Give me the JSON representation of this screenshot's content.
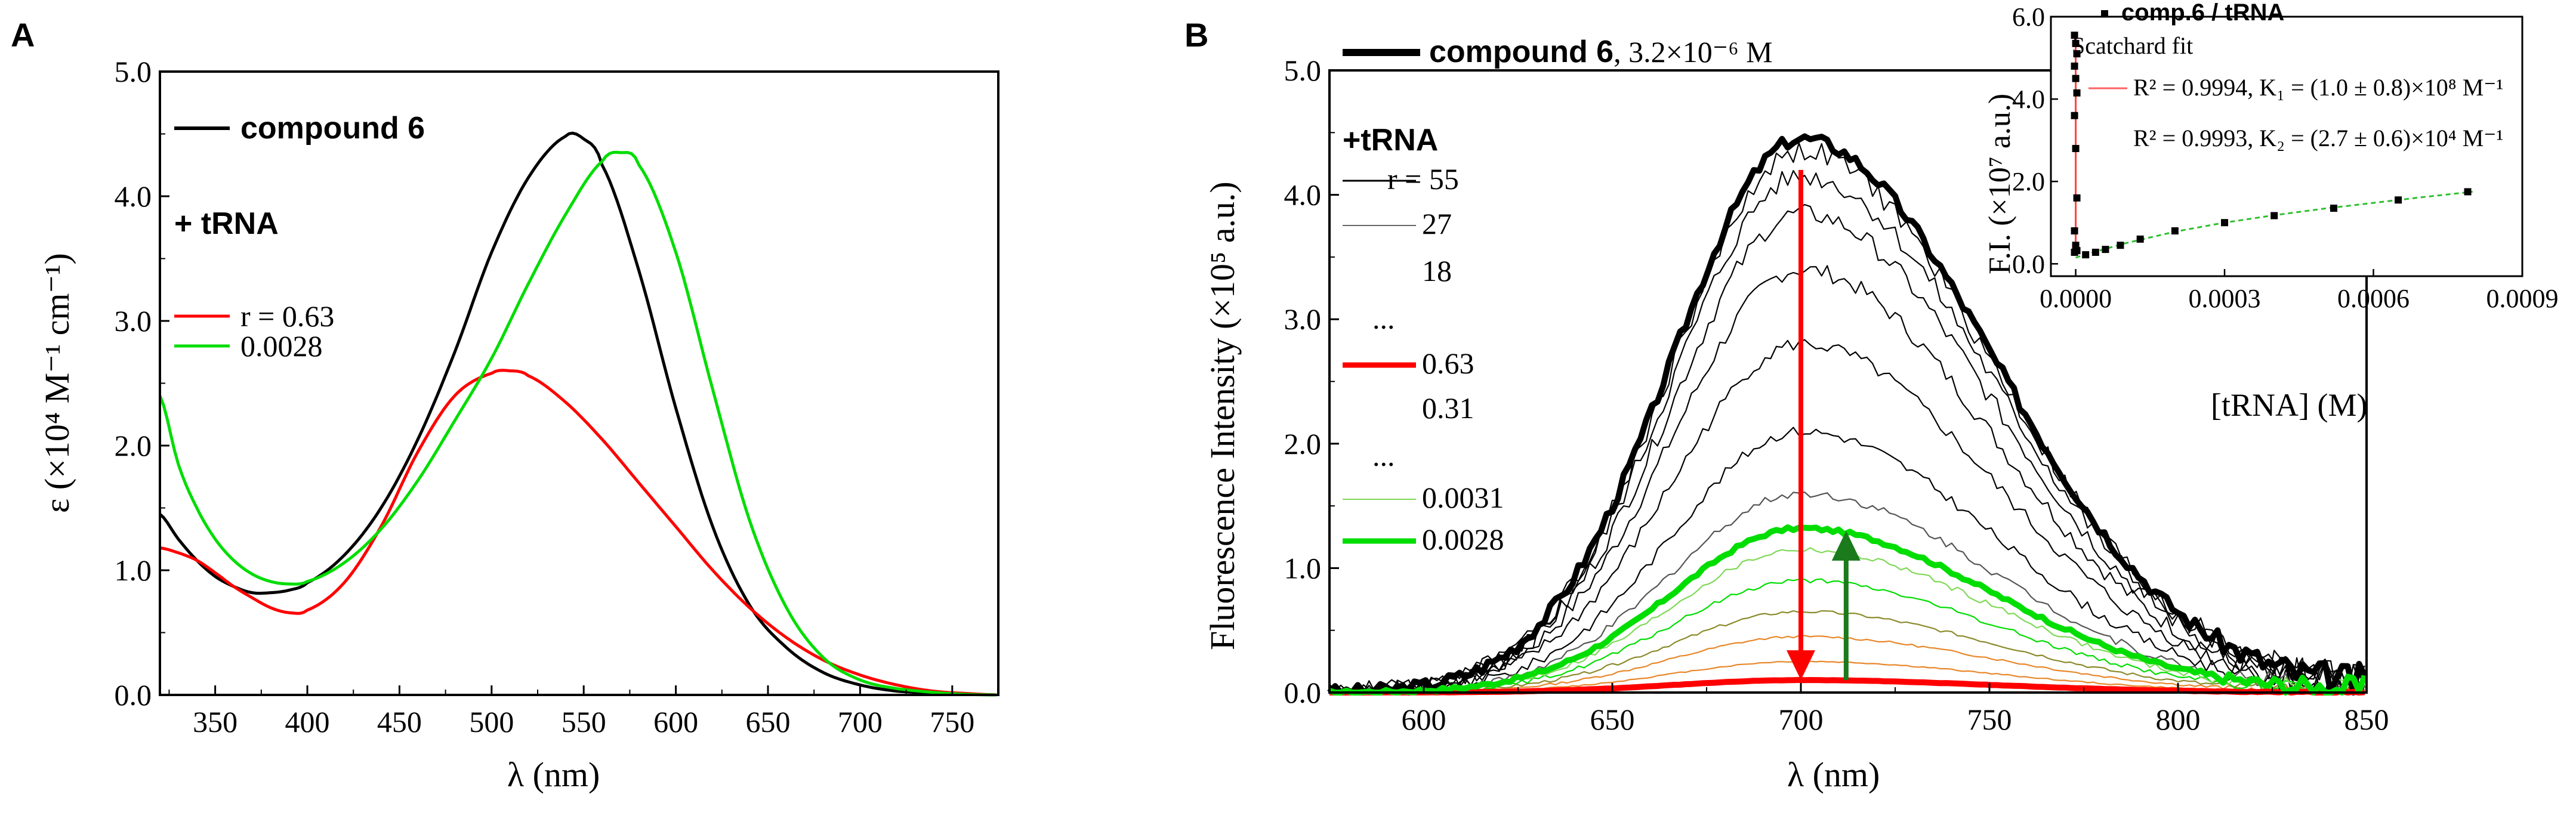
{
  "panel_a_label": "A",
  "panel_b_label": "B",
  "colors": {
    "black": "#000000",
    "red": "#ff0000",
    "green": "#00dd00",
    "darkgreen": "#1b7a1b",
    "pink": "#ff8080",
    "lightgreen": "#7ed957"
  },
  "chart_data": [
    {
      "type": "line",
      "title": "",
      "xlabel": "λ (nm)",
      "ylabel": "ε (×10⁴ M⁻¹ cm⁻¹)",
      "xlim": [
        320,
        775
      ],
      "ylim": [
        0,
        5.0
      ],
      "xticks": [
        350,
        400,
        450,
        500,
        550,
        600,
        650,
        700,
        750
      ],
      "yticks": [
        0.0,
        1.0,
        2.0,
        3.0,
        4.0,
        5.0
      ],
      "ytick_labels": [
        "0.0",
        "1.0",
        "2.0",
        "3.0",
        "4.0",
        "5.0"
      ],
      "legend": {
        "title_compound": "compound 6",
        "title_trna": "+ tRNA",
        "r_red": "r = 0.63",
        "r_green": "0.0028"
      },
      "series": [
        {
          "name": "compound 6",
          "color": "black",
          "x": [
            320,
            330,
            340,
            350,
            360,
            370,
            380,
            390,
            400,
            420,
            440,
            460,
            480,
            500,
            520,
            540,
            550,
            560,
            580,
            600,
            620,
            640,
            660,
            680,
            700,
            720,
            750,
            775
          ],
          "y": [
            1.45,
            1.25,
            1.08,
            0.95,
            0.87,
            0.82,
            0.82,
            0.84,
            0.9,
            1.12,
            1.5,
            2.05,
            2.75,
            3.55,
            4.15,
            4.48,
            4.46,
            4.25,
            3.4,
            2.3,
            1.35,
            0.72,
            0.38,
            0.18,
            0.08,
            0.03,
            0.01,
            0.0
          ]
        },
        {
          "name": "r = 0.63",
          "color": "red",
          "x": [
            320,
            330,
            340,
            350,
            360,
            370,
            380,
            390,
            400,
            420,
            440,
            460,
            480,
            500,
            510,
            520,
            540,
            560,
            580,
            600,
            620,
            640,
            660,
            680,
            700,
            720,
            740,
            760,
            775
          ],
          "y": [
            1.18,
            1.14,
            1.08,
            0.98,
            0.87,
            0.78,
            0.7,
            0.66,
            0.68,
            0.9,
            1.35,
            1.95,
            2.4,
            2.58,
            2.6,
            2.56,
            2.35,
            2.05,
            1.7,
            1.35,
            1.0,
            0.7,
            0.46,
            0.28,
            0.16,
            0.08,
            0.03,
            0.01,
            0.0
          ]
        },
        {
          "name": "0.0028",
          "color": "green",
          "x": [
            320,
            330,
            340,
            350,
            360,
            370,
            380,
            390,
            400,
            420,
            440,
            460,
            480,
            500,
            520,
            540,
            560,
            570,
            580,
            600,
            620,
            640,
            660,
            680,
            700,
            720,
            750,
            775
          ],
          "y": [
            2.4,
            1.85,
            1.5,
            1.25,
            1.08,
            0.97,
            0.91,
            0.89,
            0.91,
            1.06,
            1.33,
            1.72,
            2.2,
            2.7,
            3.3,
            3.85,
            4.28,
            4.35,
            4.25,
            3.55,
            2.45,
            1.4,
            0.7,
            0.3,
            0.12,
            0.05,
            0.01,
            0.0
          ]
        }
      ]
    },
    {
      "type": "line",
      "title": "",
      "xlabel": "λ (nm)",
      "ylabel": "Fluorescence Intensity (×10⁵ a.u.)",
      "xlim": [
        575,
        850
      ],
      "ylim": [
        0,
        5.0
      ],
      "xticks": [
        600,
        650,
        700,
        750,
        800,
        850
      ],
      "yticks": [
        0.0,
        1.0,
        2.0,
        3.0,
        4.0,
        5.0
      ],
      "ytick_labels": [
        "0.0",
        "1.0",
        "2.0",
        "3.0",
        "4.0",
        "5.0"
      ],
      "legend": {
        "compound_label": "compound 6",
        "compound_conc": ", 3.2×10⁻⁶ M",
        "trna": "+tRNA",
        "r_entries": [
          "r = 55",
          "27",
          "18",
          "...",
          "0.63",
          "0.31",
          "...",
          "0.0031",
          "0.0028"
        ]
      },
      "peak_wavelength": 700,
      "curves": [
        {
          "name": "compound 6",
          "color": "black",
          "peak": 4.45,
          "style": "thick"
        },
        {
          "name": "r = 55",
          "color": "black",
          "peak": 4.35
        },
        {
          "name": "27",
          "color": "black",
          "peak": 4.15
        },
        {
          "name": "18",
          "color": "black",
          "peak": 3.85
        },
        {
          "name": "tRNA",
          "color": "black",
          "peak": 3.4
        },
        {
          "name": "tRNA",
          "color": "black",
          "peak": 2.8
        },
        {
          "name": "tRNA",
          "color": "black",
          "peak": 2.1
        },
        {
          "name": "tRNA",
          "color": "gray",
          "peak": 1.6
        },
        {
          "name": "0.63",
          "color": "red",
          "peak": 0.1,
          "style": "thick"
        },
        {
          "name": "0.31",
          "color": "orange",
          "peak": 0.25
        },
        {
          "name": "tRNA",
          "color": "orange",
          "peak": 0.45
        },
        {
          "name": "tRNA",
          "color": "olive",
          "peak": 0.65
        },
        {
          "name": "tRNA",
          "color": "green",
          "peak": 0.9
        },
        {
          "name": "0.0031",
          "color": "lightgreen",
          "peak": 1.15
        },
        {
          "name": "0.0028",
          "color": "green",
          "peak": 1.32,
          "style": "thick"
        }
      ],
      "arrows": [
        {
          "color": "red",
          "x": 700,
          "from": 4.2,
          "to": 0.1
        },
        {
          "color": "darkgreen",
          "x": 712,
          "from": 0.1,
          "to": 1.3
        }
      ]
    },
    {
      "type": "scatter",
      "title": "",
      "xlabel": "[tRNA] (M)",
      "ylabel": "F.I. (×10⁷ a.u.)",
      "xlim": [
        -5e-05,
        0.0009
      ],
      "ylim": [
        -0.3,
        6.0
      ],
      "xticks": [
        0.0,
        0.0003,
        0.0006,
        0.0009
      ],
      "xtick_labels": [
        "0.0000",
        "0.0003",
        "0.0006",
        "0.0009"
      ],
      "yticks": [
        0.0,
        2.0,
        4.0,
        6.0
      ],
      "ytick_labels": [
        "0.0",
        "2.0",
        "4.0",
        "6.0"
      ],
      "legend": {
        "points": "comp.6 / tRNA",
        "fit": "Scatchard fit",
        "fit1": "R² = 0.9994, K₁ = (1.0 ± 0.8)×10⁸ M⁻¹",
        "fit2": "R² = 0.9993, K₂ = (2.7 ± 0.6)×10⁴ M⁻¹"
      },
      "points_near_zero": {
        "x": [
          1e-07,
          2e-07,
          3e-07,
          4e-07,
          5e-07,
          6e-07,
          8e-07,
          1e-06,
          1.2e-06,
          1.5e-06,
          2e-06,
          3e-06,
          5e-06
        ],
        "y": [
          5.55,
          5.35,
          5.1,
          4.8,
          4.5,
          4.15,
          3.6,
          2.8,
          1.6,
          0.8,
          0.45,
          0.32,
          0.28
        ]
      },
      "points": {
        "x": [
          2e-05,
          4e-05,
          6e-05,
          9e-05,
          0.00013,
          0.0002,
          0.0003,
          0.0004,
          0.00052,
          0.00065,
          0.00079
        ],
        "y": [
          0.22,
          0.28,
          0.35,
          0.45,
          0.6,
          0.8,
          1.0,
          1.17,
          1.35,
          1.55,
          1.75
        ]
      },
      "fit_curve": {
        "x": [
          0.0,
          2e-05,
          5e-05,
          0.0001,
          0.0002,
          0.0003,
          0.0004,
          0.0005,
          0.0006,
          0.0007,
          0.0008
        ],
        "y": [
          0.15,
          0.23,
          0.33,
          0.5,
          0.78,
          1.0,
          1.18,
          1.34,
          1.48,
          1.62,
          1.75
        ]
      }
    }
  ]
}
